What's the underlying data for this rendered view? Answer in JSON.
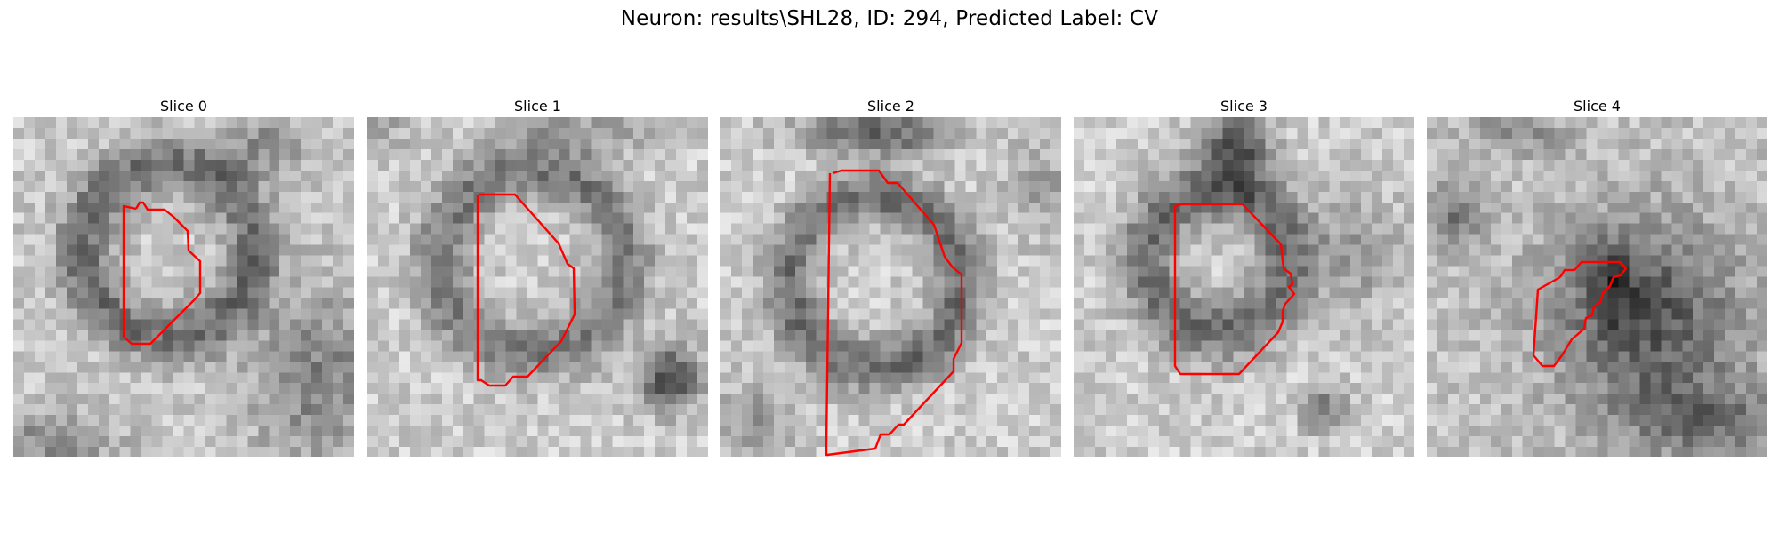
{
  "figure": {
    "title": "Neuron: results\\SHL28, ID: 294, Predicted Label: CV"
  },
  "colors": {
    "contour": "#ff0000",
    "background": "#ffffff"
  },
  "panels": [
    {
      "title": "Slice 0"
    },
    {
      "title": "Slice 1"
    },
    {
      "title": "Slice 2"
    },
    {
      "title": "Slice 3"
    },
    {
      "title": "Slice 4"
    }
  ]
}
